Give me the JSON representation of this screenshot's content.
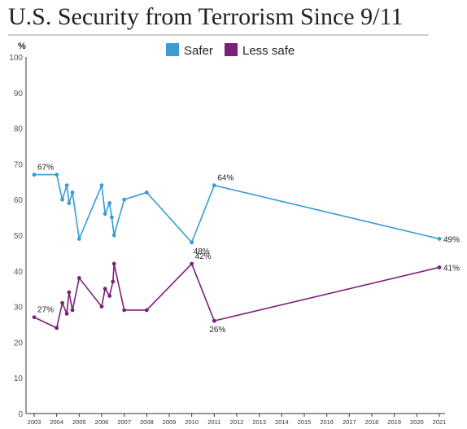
{
  "chart_data": {
    "type": "line",
    "title": "U.S. Security from Terrorism Since 9/11",
    "ylabel": "%",
    "xlabel": "",
    "ylim": [
      0,
      100
    ],
    "yticks": [
      0,
      10,
      20,
      30,
      40,
      50,
      60,
      70,
      80,
      90,
      100
    ],
    "xlim": [
      2003,
      2021
    ],
    "xticks": [
      "2003",
      "2004",
      "2005",
      "2006",
      "2007",
      "2008",
      "2009",
      "2010",
      "2011",
      "2012",
      "2013",
      "2014",
      "2015",
      "2016",
      "2017",
      "2018",
      "2019",
      "2020",
      "2021"
    ],
    "grid": false,
    "legend": "top-center",
    "colors": {
      "safer": "#3a9bd5",
      "less_safe": "#7b1f7a"
    },
    "series": [
      {
        "name": "Safer",
        "points": [
          [
            2003.0,
            67
          ],
          [
            2004.0,
            67
          ],
          [
            2004.25,
            60
          ],
          [
            2004.45,
            64
          ],
          [
            2004.55,
            59
          ],
          [
            2004.7,
            62
          ],
          [
            2005.0,
            49
          ],
          [
            2006.0,
            64
          ],
          [
            2006.15,
            56
          ],
          [
            2006.35,
            59
          ],
          [
            2006.45,
            55
          ],
          [
            2006.55,
            50
          ],
          [
            2007.0,
            60
          ],
          [
            2008.0,
            62
          ],
          [
            2010.0,
            48
          ],
          [
            2011.0,
            64
          ],
          [
            2021.0,
            49
          ]
        ],
        "labels": [
          {
            "x": 2003.0,
            "y": 67,
            "text": "67%"
          },
          {
            "x": 2010.0,
            "y": 48,
            "text": "48%"
          },
          {
            "x": 2011.0,
            "y": 64,
            "text": "64%"
          },
          {
            "x": 2021.0,
            "y": 49,
            "text": "49%"
          }
        ]
      },
      {
        "name": "Less safe",
        "points": [
          [
            2003.0,
            27
          ],
          [
            2004.0,
            24
          ],
          [
            2004.25,
            31
          ],
          [
            2004.45,
            28
          ],
          [
            2004.55,
            34
          ],
          [
            2004.7,
            29
          ],
          [
            2005.0,
            38
          ],
          [
            2006.0,
            30
          ],
          [
            2006.15,
            35
          ],
          [
            2006.35,
            33
          ],
          [
            2006.5,
            37
          ],
          [
            2006.55,
            42
          ],
          [
            2007.0,
            29
          ],
          [
            2008.0,
            29
          ],
          [
            2010.0,
            42
          ],
          [
            2011.0,
            26
          ],
          [
            2021.0,
            41
          ]
        ],
        "labels": [
          {
            "x": 2003.0,
            "y": 27,
            "text": "27%"
          },
          {
            "x": 2010.0,
            "y": 42,
            "text": "42%"
          },
          {
            "x": 2011.0,
            "y": 26,
            "text": "26%"
          },
          {
            "x": 2021.0,
            "y": 41,
            "text": "41%"
          }
        ]
      }
    ]
  }
}
